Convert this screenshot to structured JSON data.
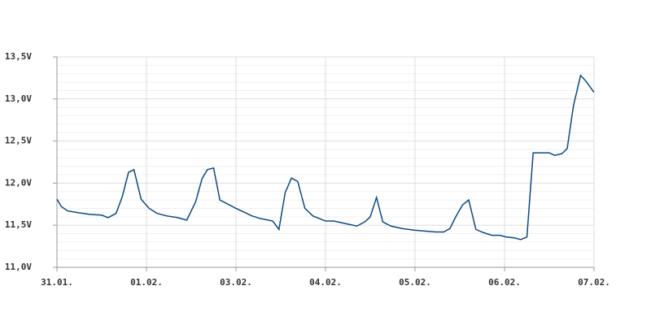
{
  "chart_data": {
    "type": "line",
    "x": [
      0,
      0.05,
      0.12,
      0.23,
      0.36,
      0.5,
      0.57,
      0.66,
      0.73,
      0.8,
      0.86,
      0.94,
      1.03,
      1.12,
      1.23,
      1.35,
      1.45,
      1.55,
      1.62,
      1.68,
      1.75,
      1.82,
      2,
      2.18,
      2.27,
      2.41,
      2.48,
      2.55,
      2.62,
      2.69,
      2.77,
      2.86,
      3,
      3.09,
      3.18,
      3.35,
      3.44,
      3.5,
      3.57,
      3.64,
      3.73,
      3.86,
      4,
      4.12,
      4.23,
      4.32,
      4.39,
      4.45,
      4.53,
      4.6,
      4.68,
      4.77,
      4.86,
      4.95,
      5.02,
      5.11,
      5.18,
      5.25,
      5.32,
      5.5,
      5.56,
      5.64,
      5.7,
      5.77,
      5.85,
      5.91,
      6
    ],
    "series": [
      {
        "color": "#0b4a80",
        "values": [
          11.81,
          11.72,
          11.67,
          11.65,
          11.63,
          11.62,
          11.59,
          11.64,
          11.84,
          12.13,
          12.16,
          11.81,
          11.7,
          11.64,
          11.61,
          11.59,
          11.56,
          11.78,
          12.05,
          12.16,
          12.18,
          11.8,
          11.7,
          11.61,
          11.58,
          11.55,
          11.45,
          11.89,
          12.06,
          12.02,
          11.7,
          11.61,
          11.55,
          11.55,
          11.53,
          11.49,
          11.54,
          11.6,
          11.83,
          11.54,
          11.49,
          11.46,
          11.44,
          11.43,
          11.42,
          11.42,
          11.46,
          11.59,
          11.74,
          11.8,
          11.45,
          11.41,
          11.38,
          11.38,
          11.36,
          11.35,
          11.33,
          11.36,
          12.36,
          12.36,
          12.33,
          12.35,
          12.41,
          12.92,
          13.28,
          13.21,
          13.08
        ]
      }
    ],
    "xlim": [
      0,
      6
    ],
    "xticks": [
      {
        "value": 0,
        "label": "31.01."
      },
      {
        "value": 1,
        "label": "01.02."
      },
      {
        "value": 2,
        "label": "03.02."
      },
      {
        "value": 3,
        "label": "04.02."
      },
      {
        "value": 4,
        "label": "05.02."
      },
      {
        "value": 5,
        "label": "06.02."
      },
      {
        "value": 6,
        "label": "07.02."
      }
    ],
    "ylim": [
      11.0,
      13.5
    ],
    "yticks": [
      {
        "value": 11.0,
        "label": "11,0V"
      },
      {
        "value": 11.5,
        "label": "11,5V"
      },
      {
        "value": 12.0,
        "label": "12,0V"
      },
      {
        "value": 12.5,
        "label": "12,5V"
      },
      {
        "value": 13.0,
        "label": "13,0V"
      },
      {
        "value": 13.5,
        "label": "13,5V"
      }
    ],
    "grid": true
  }
}
